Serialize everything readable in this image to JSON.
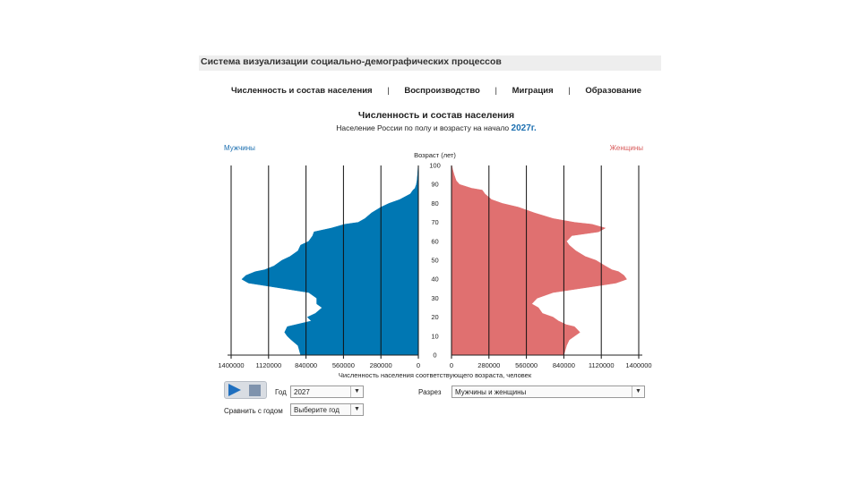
{
  "app_title": "Система визуализации социально-демографических процессов",
  "nav": [
    "Численность и состав населения",
    "Воспроизводство",
    "Миграция",
    "Образование"
  ],
  "nav_separator": "|",
  "chart_data": {
    "type": "bar",
    "orientation": "horizontal-pyramid",
    "title": "Численность и состав населения",
    "subtitle_prefix": "Население России по полу и возрасту на начало",
    "subtitle_year": "2027г.",
    "y_axis_label": "Возраст (лет)",
    "x_axis_label": "Численность населения соответствующего возраста, человек",
    "left_series_label": "Мужчины",
    "right_series_label": "Женщины",
    "age_ticks": [
      0,
      10,
      20,
      30,
      40,
      50,
      60,
      70,
      80,
      90,
      100
    ],
    "x_ticks_left": [
      "1400000",
      "1120000",
      "840000",
      "560000",
      "280000",
      "0"
    ],
    "x_ticks_right": [
      "0",
      "280000",
      "560000",
      "840000",
      "1120000",
      "1400000"
    ],
    "xlim": [
      0,
      1400000
    ],
    "ylim": [
      0,
      100
    ],
    "grid": "vertical",
    "age_points": [
      0,
      5,
      8,
      10,
      12,
      15,
      16,
      18,
      20,
      22,
      25,
      27,
      30,
      33,
      35,
      37,
      38,
      40,
      42,
      44,
      45,
      47,
      50,
      52,
      55,
      58,
      60,
      63,
      65,
      67,
      69,
      70,
      72,
      75,
      78,
      80,
      82,
      85,
      87,
      88,
      90,
      92,
      95,
      98,
      100
    ],
    "male": [
      880000,
      900000,
      950000,
      980000,
      1000000,
      980000,
      920000,
      800000,
      830000,
      770000,
      720000,
      760000,
      760000,
      820000,
      1000000,
      1180000,
      1270000,
      1320000,
      1290000,
      1220000,
      1150000,
      1080000,
      1020000,
      960000,
      900000,
      880000,
      820000,
      790000,
      780000,
      650000,
      550000,
      450000,
      400000,
      350000,
      280000,
      220000,
      140000,
      60000,
      40000,
      25000,
      15000,
      10000,
      6000,
      3000,
      1000
    ],
    "female": [
      840000,
      860000,
      880000,
      920000,
      960000,
      920000,
      860000,
      800000,
      760000,
      680000,
      650000,
      600000,
      640000,
      760000,
      950000,
      1140000,
      1230000,
      1310000,
      1290000,
      1250000,
      1200000,
      1150000,
      1080000,
      1000000,
      930000,
      880000,
      860000,
      900000,
      1100000,
      1150000,
      1050000,
      920000,
      760000,
      620000,
      500000,
      380000,
      300000,
      250000,
      230000,
      150000,
      60000,
      35000,
      20000,
      8000,
      2000
    ],
    "male_color": "#0077b3",
    "female_color": "#e07070"
  },
  "controls": {
    "year_label": "Год",
    "year_value": "2027",
    "gender_label": "Разрез",
    "gender_value": "Мужчины и женщины",
    "compare_label": "Сравнить с годом",
    "compare_value": "Выберите год"
  }
}
